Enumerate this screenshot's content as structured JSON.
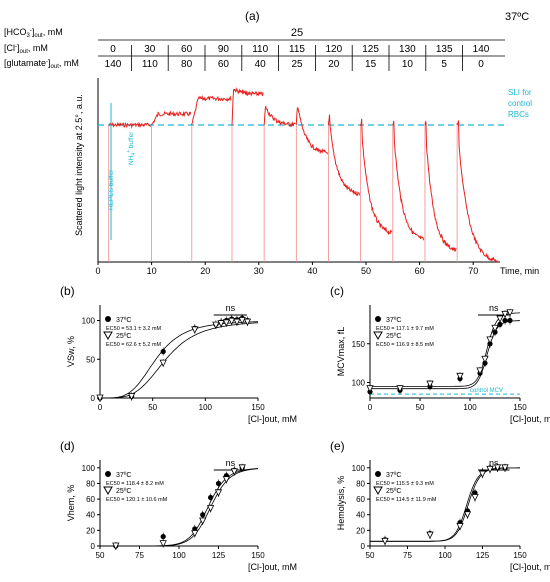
{
  "figure": {
    "panel_a_label": "(a)",
    "temperature": "37ºC",
    "conditions": {
      "hco3_label": "[HCO3-]out, mM",
      "hco3_value": "25",
      "cl_label": "[Cl-]out, mM",
      "cl_values": [
        "0",
        "30",
        "60",
        "90",
        "110",
        "115",
        "120",
        "125",
        "130",
        "135",
        "140"
      ],
      "glu_label": "[glutamate-]out, mM",
      "glu_values": [
        "140",
        "110",
        "80",
        "60",
        "40",
        "25",
        "20",
        "15",
        "10",
        "5",
        "0"
      ]
    },
    "panel_a": {
      "ylabel": "Scattered light intensity at 2.5°, a.u.",
      "xlabel": "Time, min",
      "xticks": [
        "0",
        "10",
        "20",
        "30",
        "40",
        "50",
        "60",
        "70"
      ],
      "sli_label": "SLI for control RBCs",
      "hepes_label": "HEPES buffer",
      "nh4_label": "NH4+ buffer"
    }
  },
  "chart_data": [
    {
      "type": "line",
      "panel": "a",
      "xlabel": "Time, min",
      "ylabel": "Scattered light intensity at 2.5°, a.u.",
      "xlim": [
        0,
        75
      ],
      "segments": [
        {
          "start": 2,
          "baseline": 0.0,
          "level": 0.0,
          "tail": 0.0
        },
        {
          "start": 10,
          "baseline": 0.0,
          "level": 0.05,
          "tail": 0.05
        },
        {
          "start": 17.5,
          "baseline": 0.0,
          "level": 0.12,
          "tail": 0.12
        },
        {
          "start": 25,
          "baseline": 0.0,
          "level": 0.17,
          "tail": 0.14
        },
        {
          "start": 31,
          "baseline": 0.0,
          "level": 0.1,
          "tail": 0.0
        },
        {
          "start": 37,
          "baseline": 0.0,
          "level": 0.13,
          "tail": -0.13
        },
        {
          "start": 43,
          "baseline": 0.0,
          "level": 0.06,
          "tail": -0.32
        },
        {
          "start": 49,
          "baseline": 0.0,
          "level": 0.04,
          "tail": -0.5
        },
        {
          "start": 55,
          "baseline": 0.0,
          "level": 0.03,
          "tail": -0.53
        },
        {
          "start": 61,
          "baseline": 0.0,
          "level": 0.02,
          "tail": -0.58
        },
        {
          "start": 67,
          "baseline": 0.0,
          "level": 0.02,
          "tail": -0.63
        }
      ],
      "reference_line": {
        "label": "SLI for control RBCs",
        "y": 0.0
      }
    },
    {
      "type": "scatter",
      "panel": "b",
      "panel_label": "(b)",
      "ylabel": "VSw, %",
      "xlabel": "[Cl-]out, mM",
      "xlim": [
        0,
        150
      ],
      "ylim": [
        0,
        120
      ],
      "xticks": [
        0,
        50,
        100,
        150
      ],
      "yticks": [
        0,
        50,
        100
      ],
      "significance": "ns",
      "legend": [
        {
          "marker": "filled-circle",
          "name": "37ºC",
          "ec50": "EC50 = 53.1 ± 3.2 mM"
        },
        {
          "marker": "open-triangle",
          "name": "25ºC",
          "ec50": "EC50 = 62.6 ± 5.2 mM"
        }
      ],
      "series": [
        {
          "name": "37ºC",
          "x": [
            0,
            30,
            60,
            90,
            110,
            115,
            120,
            125,
            130,
            135,
            140
          ],
          "y": [
            0,
            2,
            60,
            90,
            95,
            98,
            100,
            102,
            101,
            103,
            100
          ],
          "fit": {
            "top": 100,
            "ec50": 53.1,
            "n": 4
          }
        },
        {
          "name": "25ºC",
          "x": [
            0,
            30,
            60,
            90,
            110,
            115,
            120,
            125,
            130,
            135,
            140
          ],
          "y": [
            0,
            2,
            45,
            88,
            94,
            96,
            97,
            99,
            98,
            100,
            98
          ],
          "fit": {
            "top": 100,
            "ec50": 62.6,
            "n": 4
          }
        }
      ]
    },
    {
      "type": "scatter",
      "panel": "c",
      "panel_label": "(c)",
      "ylabel": "MCVmax, fL",
      "xlabel": "[Cl-]out, mM",
      "xlim": [
        0,
        150
      ],
      "ylim": [
        80,
        200
      ],
      "xticks": [
        0,
        50,
        100,
        150
      ],
      "yticks": [
        100,
        150
      ],
      "significance": "ns",
      "control_label": "control MCV",
      "control_value": 85,
      "legend": [
        {
          "marker": "filled-circle",
          "name": "37ºC",
          "ec50": "EC50 = 117.1 ± 9.7 mM"
        },
        {
          "marker": "open-triangle",
          "name": "25ºC",
          "ec50": "EC50 = 116.9 ± 8.5 mM"
        }
      ],
      "series": [
        {
          "name": "37ºC",
          "x": [
            0,
            30,
            60,
            90,
            110,
            115,
            120,
            125,
            130,
            135,
            140
          ],
          "y": [
            88,
            90,
            95,
            105,
            112,
            125,
            150,
            165,
            175,
            180,
            180
          ],
          "fit": {
            "bottom": 92,
            "top": 180,
            "ec50": 117.1,
            "n": 25
          }
        },
        {
          "name": "25ºC",
          "x": [
            0,
            30,
            60,
            90,
            110,
            115,
            120,
            125,
            130,
            135,
            140
          ],
          "y": [
            92,
            92,
            98,
            108,
            115,
            130,
            155,
            170,
            182,
            188,
            190
          ],
          "fit": {
            "bottom": 95,
            "top": 190,
            "ec50": 116.9,
            "n": 25
          }
        }
      ]
    },
    {
      "type": "scatter",
      "panel": "d",
      "panel_label": "(d)",
      "ylabel": "Vhem, %",
      "xlabel": "[Cl-]out, mM",
      "xlim": [
        50,
        150
      ],
      "ylim": [
        0,
        110
      ],
      "xticks": [
        50,
        75,
        100,
        125,
        150
      ],
      "yticks": [
        0,
        20,
        40,
        60,
        80,
        100
      ],
      "significance": "ns",
      "legend": [
        {
          "marker": "filled-circle",
          "name": "37ºC",
          "ec50": "EC50 = 118.4 ± 8.2 mM"
        },
        {
          "marker": "open-triangle",
          "name": "25ºC",
          "ec50": "EC50 = 120.1 ± 10.6 mM"
        }
      ],
      "series": [
        {
          "name": "37ºC",
          "x": [
            60,
            90,
            110,
            115,
            120,
            125,
            130,
            135,
            140
          ],
          "y": [
            0,
            12,
            22,
            40,
            62,
            80,
            90,
            97,
            100
          ],
          "fit": {
            "top": 100,
            "ec50": 118.4,
            "n": 20
          }
        },
        {
          "name": "25ºC",
          "x": [
            60,
            90,
            110,
            115,
            120,
            125,
            130,
            135,
            140
          ],
          "y": [
            0,
            3,
            16,
            32,
            48,
            68,
            85,
            95,
            100
          ],
          "fit": {
            "top": 100,
            "ec50": 120.1,
            "n": 20
          }
        }
      ]
    },
    {
      "type": "scatter",
      "panel": "e",
      "panel_label": "(e)",
      "ylabel": "Hemolysis, %",
      "xlabel": "[Cl-]out, mM",
      "xlim": [
        50,
        150
      ],
      "ylim": [
        0,
        110
      ],
      "xticks": [
        50,
        75,
        100,
        125,
        150
      ],
      "yticks": [
        0,
        20,
        40,
        60,
        80,
        100
      ],
      "significance": "ns",
      "legend": [
        {
          "marker": "filled-circle",
          "name": "37ºC",
          "ec50": "EC50 = 115.5 ± 9.3 mM"
        },
        {
          "marker": "open-triangle",
          "name": "25ºC",
          "ec50": "EC50 = 114.5 ± 11.9 mM"
        }
      ],
      "series": [
        {
          "name": "37ºC",
          "x": [
            60,
            90,
            110,
            115,
            120,
            125,
            130,
            135,
            140
          ],
          "y": [
            8,
            16,
            30,
            45,
            68,
            95,
            100,
            100,
            100
          ],
          "fit": {
            "bottom": 6,
            "top": 100,
            "ec50": 115.5,
            "n": 30
          }
        },
        {
          "name": "25ºC",
          "x": [
            60,
            90,
            110,
            115,
            120,
            125,
            130,
            135,
            140
          ],
          "y": [
            6,
            14,
            25,
            40,
            62,
            92,
            98,
            100,
            100
          ],
          "fit": {
            "bottom": 6,
            "top": 100,
            "ec50": 114.5,
            "n": 30
          }
        }
      ]
    }
  ]
}
